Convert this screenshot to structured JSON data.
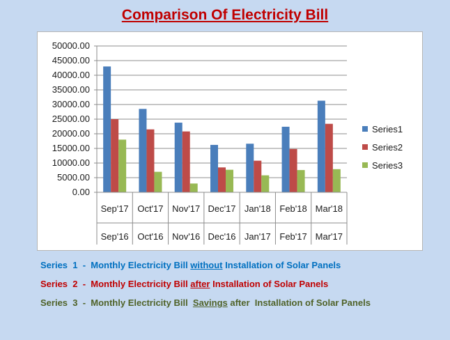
{
  "title": "Comparison  Of Electricity Bill",
  "chart_data": {
    "type": "bar",
    "categories": [
      "Sep'17",
      "Oct'17",
      "Nov'17",
      "Dec'17",
      "Jan'18",
      "Feb'18",
      "Mar'18"
    ],
    "categories_secondary": [
      "Sep'16",
      "Oct'16",
      "Nov'16",
      "Dec'16",
      "Jan'17",
      "Feb'17",
      "Mar'17"
    ],
    "series": [
      {
        "name": "Series1",
        "color": "#4a7ebb",
        "values": [
          43000,
          28500,
          23800,
          16200,
          16600,
          22400,
          31300
        ]
      },
      {
        "name": "Series2",
        "color": "#be4b48",
        "values": [
          25000,
          21500,
          20800,
          8500,
          10800,
          14800,
          23400
        ]
      },
      {
        "name": "Series3",
        "color": "#98b954",
        "values": [
          18000,
          7000,
          3000,
          7700,
          5800,
          7600,
          7900
        ]
      }
    ],
    "ylim": [
      0,
      50000
    ],
    "yticks": [
      "0.00",
      "5000.00",
      "10000.00",
      "15000.00",
      "20000.00",
      "25000.00",
      "30000.00",
      "35000.00",
      "40000.00",
      "45000.00",
      "50000.00"
    ],
    "grid": true,
    "legend": "right"
  },
  "notes": [
    {
      "color": "#0070c0",
      "prefix": "Series  1  -  Monthly Electricity Bill ",
      "emph": "without",
      "suffix": " Installation of Solar Panels"
    },
    {
      "color": "#c00000",
      "prefix": "Series  2  -  Monthly Electricity Bill ",
      "emph": "after",
      "suffix": " Installation of Solar Panels"
    },
    {
      "color": "#4f6228",
      "prefix": "Series  3  -  Monthly Electricity Bill  ",
      "emph": "Savings",
      "suffix": " after  Installation of Solar Panels"
    }
  ]
}
